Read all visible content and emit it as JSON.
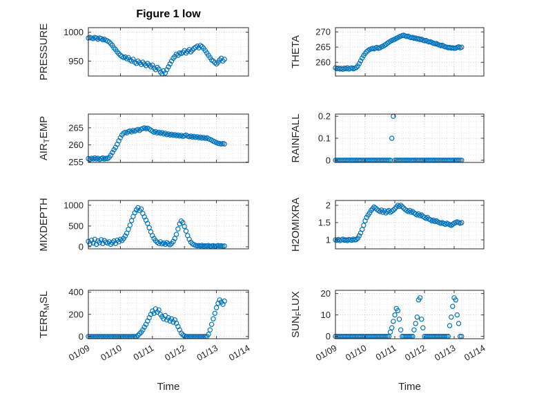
{
  "figure": {
    "title": "Figure 1 low",
    "xlabel": "Time",
    "accent_color": "#0072BD",
    "axis_color": "#262626",
    "grid_color": "#c6c6c6",
    "minor_grid_color": "#e3e3e3"
  },
  "chart_data": {
    "type": "scatter",
    "marker": "open-circle",
    "grid": "on",
    "xlim": [
      9,
      14
    ],
    "x_ticks": {
      "values": [
        9,
        10,
        11,
        12,
        13,
        14
      ],
      "labels": [
        "01/09",
        "01/10",
        "01/11",
        "01/12",
        "01/13",
        "01/14"
      ]
    },
    "x": [
      9,
      9.05,
      9.1,
      9.15,
      9.2,
      9.25,
      9.3,
      9.35,
      9.4,
      9.45,
      9.5,
      9.55,
      9.6,
      9.65,
      9.7,
      9.75,
      9.8,
      9.85,
      9.9,
      9.95,
      10,
      10.05,
      10.1,
      10.15,
      10.2,
      10.25,
      10.3,
      10.35,
      10.4,
      10.45,
      10.5,
      10.55,
      10.6,
      10.65,
      10.7,
      10.75,
      10.8,
      10.85,
      10.9,
      10.95,
      11,
      11.05,
      11.1,
      11.15,
      11.2,
      11.25,
      11.3,
      11.35,
      11.4,
      11.45,
      11.5,
      11.55,
      11.6,
      11.65,
      11.7,
      11.75,
      11.8,
      11.85,
      11.9,
      11.95,
      12,
      12.05,
      12.1,
      12.15,
      12.2,
      12.25,
      12.3,
      12.35,
      12.4,
      12.45,
      12.5,
      12.55,
      12.6,
      12.65,
      12.7,
      12.75,
      12.8,
      12.85,
      12.9,
      12.95,
      13,
      13.05,
      13.1,
      13.15,
      13.2,
      13.25
    ],
    "subplots": [
      {
        "name": "pressure",
        "ylabel": "PRESSURE",
        "ylabel_parts": [
          {
            "text": "PRESSURE",
            "sub": false
          }
        ],
        "ytick_values": [
          950,
          1000
        ],
        "ytick_labels": [
          "950",
          "1000"
        ],
        "ylim": [
          924,
          1008
        ],
        "values": [
          990,
          991,
          990,
          989,
          991,
          990,
          988,
          990,
          989,
          987,
          988,
          986,
          985,
          983,
          980,
          977,
          973,
          970,
          966,
          963,
          960,
          958,
          956,
          957,
          954,
          956,
          952,
          950,
          953,
          948,
          946,
          950,
          947,
          944,
          948,
          945,
          942,
          946,
          943,
          940,
          943,
          938,
          935,
          939,
          936,
          931,
          928,
          933,
          929,
          935,
          940,
          945,
          950,
          955,
          958,
          962,
          960,
          964,
          963,
          965,
          968,
          964,
          967,
          970,
          966,
          969,
          972,
          974,
          976,
          973,
          977,
          975,
          972,
          968,
          964,
          960,
          956,
          952,
          950,
          947,
          945,
          948,
          952,
          955,
          950,
          953
        ]
      },
      {
        "name": "theta",
        "ylabel": "THETA",
        "ylabel_parts": [
          {
            "text": "THETA",
            "sub": false
          }
        ],
        "ytick_values": [
          260,
          265,
          270
        ],
        "ytick_labels": [
          "260",
          "265",
          "270"
        ],
        "ylim": [
          255.5,
          271.4
        ],
        "values": [
          258.2,
          257.9,
          258.1,
          257.8,
          258,
          257.7,
          258.1,
          257.9,
          258.2,
          257.8,
          258,
          258.2,
          257.9,
          258.1,
          258.3,
          258.8,
          259.6,
          260.5,
          261.4,
          262.2,
          262.9,
          263.5,
          263.9,
          264.2,
          264.4,
          264.6,
          264.4,
          264.7,
          264.9,
          264.6,
          264.8,
          265.1,
          265.3,
          265.6,
          265.9,
          266.3,
          266.6,
          266.9,
          267.2,
          267.4,
          267.6,
          267.9,
          268.1,
          268.4,
          268.6,
          268.8,
          268.9,
          268.7,
          268.5,
          268.6,
          268.3,
          268.1,
          268.2,
          267.9,
          268,
          267.7,
          267.8,
          267.5,
          267.6,
          267.3,
          267.1,
          267.2,
          266.9,
          266.7,
          266.8,
          266.5,
          266.3,
          266.1,
          266.2,
          265.9,
          265.7,
          265.5,
          265.6,
          265.3,
          265.1,
          265,
          264.8,
          264.9,
          264.7,
          264.8,
          264.6,
          264.7,
          264.9,
          265.1,
          264.8,
          265
        ]
      },
      {
        "name": "air-temp",
        "ylabel": "AIR_TEMP",
        "ylabel_parts": [
          {
            "text": "AIR",
            "sub": false
          },
          {
            "text": "T",
            "sub": true
          },
          {
            "text": "EMP",
            "sub": false
          }
        ],
        "ytick_values": [
          255,
          260,
          265
        ],
        "ytick_labels": [
          "255",
          "260",
          "265"
        ],
        "ylim": [
          254.9,
          269
        ],
        "values": [
          256,
          255.8,
          256.1,
          255.9,
          256.2,
          255.9,
          256.1,
          255.8,
          256,
          256.2,
          255.9,
          256.1,
          256,
          256.4,
          257,
          257.8,
          258.6,
          259.3,
          260.2,
          261.2,
          262.1,
          262.9,
          263.4,
          263.7,
          263.5,
          263.9,
          264.1,
          263.8,
          264.2,
          264,
          264.3,
          264.5,
          264.2,
          264.6,
          264.8,
          265,
          264.7,
          264.9,
          264.6,
          264.3,
          264,
          263.7,
          263.9,
          263.5,
          263.7,
          263.4,
          263.6,
          263.2,
          263.4,
          263,
          263.2,
          262.9,
          263.1,
          262.8,
          263,
          262.7,
          262.9,
          262.6,
          262.8,
          262.5,
          262.7,
          262.9,
          262.6,
          262.4,
          262.6,
          262.3,
          262.5,
          262.2,
          262.4,
          262.1,
          262.3,
          262,
          262.2,
          261.9,
          262.1,
          261.8,
          261.6,
          261.4,
          261.1,
          260.9,
          260.7,
          260.5,
          260.4,
          260.3,
          260.4,
          260.3
        ]
      },
      {
        "name": "rainfall",
        "ylabel": "RAINFALL",
        "ylabel_parts": [
          {
            "text": "RAINFALL",
            "sub": false
          }
        ],
        "ytick_values": [
          0,
          0.1,
          0.2
        ],
        "ytick_labels": [
          "0",
          "0.1",
          "0.2"
        ],
        "ylim": [
          -0.01,
          0.21
        ],
        "values": [
          0,
          0,
          0,
          0,
          0,
          0,
          0,
          0,
          0,
          0,
          0,
          0,
          0,
          0,
          0,
          0,
          0,
          0,
          0,
          0,
          0,
          0,
          0,
          0,
          0,
          0,
          0,
          0,
          0,
          0,
          0,
          0,
          0,
          0,
          0,
          0,
          0,
          0,
          0.1,
          0.2,
          0,
          0,
          0,
          0,
          0,
          0,
          0,
          0,
          0,
          0,
          0,
          0,
          0,
          0,
          0,
          0,
          0,
          0,
          0,
          0,
          0,
          0,
          0,
          0,
          0,
          0,
          0,
          0,
          0,
          0,
          0,
          0,
          0,
          0,
          0,
          0,
          0,
          0,
          0,
          0,
          0,
          0,
          0,
          0,
          0,
          0
        ]
      },
      {
        "name": "mixdepth",
        "ylabel": "MIXDEPTH",
        "ylabel_parts": [
          {
            "text": "MIXDEPTH",
            "sub": false
          }
        ],
        "ytick_values": [
          0,
          500,
          1000
        ],
        "ytick_labels": [
          "0",
          "500",
          "1000"
        ],
        "ylim": [
          -50,
          1115
        ],
        "values": [
          130,
          70,
          160,
          90,
          180,
          60,
          140,
          100,
          170,
          80,
          150,
          110,
          90,
          120,
          60,
          100,
          140,
          80,
          160,
          120,
          180,
          150,
          200,
          260,
          330,
          420,
          520,
          630,
          730,
          820,
          890,
          940,
          870,
          910,
          800,
          720,
          640,
          560,
          460,
          360,
          270,
          200,
          150,
          110,
          80,
          120,
          70,
          90,
          60,
          100,
          70,
          50,
          80,
          130,
          200,
          300,
          430,
          550,
          620,
          580,
          490,
          380,
          270,
          180,
          110,
          70,
          50,
          35,
          25,
          30,
          20,
          35,
          15,
          25,
          20,
          30,
          15,
          20,
          25,
          15,
          20,
          30,
          20,
          25,
          15,
          20
        ]
      },
      {
        "name": "h2omixra",
        "ylabel": "H2OMIXRA",
        "ylabel_parts": [
          {
            "text": "H2OMIXRA",
            "sub": false
          }
        ],
        "ytick_values": [
          1,
          1.5,
          2
        ],
        "ytick_labels": [
          "1",
          "1.5",
          "2"
        ],
        "ylim": [
          0.74,
          2.14
        ],
        "values": [
          1,
          0.99,
          1.01,
          0.98,
          1,
          1.02,
          0.99,
          1,
          0.98,
          1.01,
          1,
          0.99,
          1.02,
          1,
          1.01,
          1.05,
          1.12,
          1.2,
          1.3,
          1.42,
          1.55,
          1.65,
          1.72,
          1.78,
          1.85,
          1.9,
          1.95,
          1.92,
          1.88,
          1.85,
          1.82,
          1.86,
          1.8,
          1.84,
          1.78,
          1.82,
          1.85,
          1.8,
          1.83,
          1.86,
          1.9,
          1.95,
          2,
          1.97,
          2,
          1.96,
          1.92,
          1.88,
          1.85,
          1.82,
          1.85,
          1.8,
          1.82,
          1.78,
          1.75,
          1.72,
          1.75,
          1.7,
          1.72,
          1.68,
          1.65,
          1.62,
          1.65,
          1.6,
          1.58,
          1.55,
          1.57,
          1.53,
          1.55,
          1.52,
          1.5,
          1.48,
          1.5,
          1.47,
          1.45,
          1.48,
          1.46,
          1.44,
          1.42,
          1.45,
          1.48,
          1.5,
          1.52,
          1.5,
          1.48,
          1.5
        ]
      },
      {
        "name": "terr-msl",
        "ylabel": "TERR_MSL",
        "ylabel_parts": [
          {
            "text": "TERR",
            "sub": false
          },
          {
            "text": "M",
            "sub": true
          },
          {
            "text": "SL",
            "sub": false
          }
        ],
        "ytick_values": [
          0,
          200,
          400
        ],
        "ytick_labels": [
          "0",
          "200",
          "400"
        ],
        "ylim": [
          -20,
          417
        ],
        "values": [
          0,
          0,
          0,
          0,
          0,
          0,
          0,
          0,
          0,
          0,
          0,
          0,
          0,
          0,
          0,
          0,
          0,
          0,
          0,
          0,
          0,
          0,
          0,
          0,
          0,
          0,
          0,
          0,
          0,
          0,
          0,
          10,
          25,
          40,
          60,
          85,
          110,
          140,
          170,
          200,
          230,
          210,
          250,
          220,
          240,
          200,
          180,
          160,
          190,
          150,
          170,
          140,
          160,
          130,
          150,
          120,
          90,
          60,
          30,
          15,
          5,
          0,
          0,
          0,
          0,
          0,
          0,
          0,
          0,
          0,
          0,
          0,
          0,
          0,
          0,
          20,
          60,
          110,
          160,
          210,
          260,
          300,
          330,
          310,
          290,
          320
        ]
      },
      {
        "name": "sun-flux",
        "ylabel": "SUN_FLUX",
        "ylabel_parts": [
          {
            "text": "SUN",
            "sub": false
          },
          {
            "text": "F",
            "sub": true
          },
          {
            "text": "LUX",
            "sub": false
          }
        ],
        "ytick_values": [
          0,
          10,
          20
        ],
        "ytick_labels": [
          "0",
          "10",
          "20"
        ],
        "ylim": [
          -1.1,
          21.5
        ],
        "values": [
          0,
          0,
          0,
          0,
          0,
          0,
          0,
          0,
          0,
          0,
          0,
          0,
          0,
          0,
          0,
          0,
          0,
          0,
          0,
          0,
          0,
          0,
          0,
          0,
          0,
          0,
          0,
          0,
          0,
          0,
          0,
          0,
          0,
          0,
          0,
          0,
          0,
          2,
          4,
          7,
          10,
          13,
          12,
          8,
          3,
          0,
          0,
          0,
          0,
          0,
          0,
          0,
          0,
          3,
          6,
          9,
          17,
          18,
          8,
          4,
          0,
          0,
          0,
          0,
          0,
          0,
          0,
          0,
          0,
          0,
          0,
          0,
          0,
          0,
          0,
          0,
          0,
          5,
          9,
          14,
          18,
          17,
          10,
          6,
          0,
          0
        ]
      }
    ]
  }
}
